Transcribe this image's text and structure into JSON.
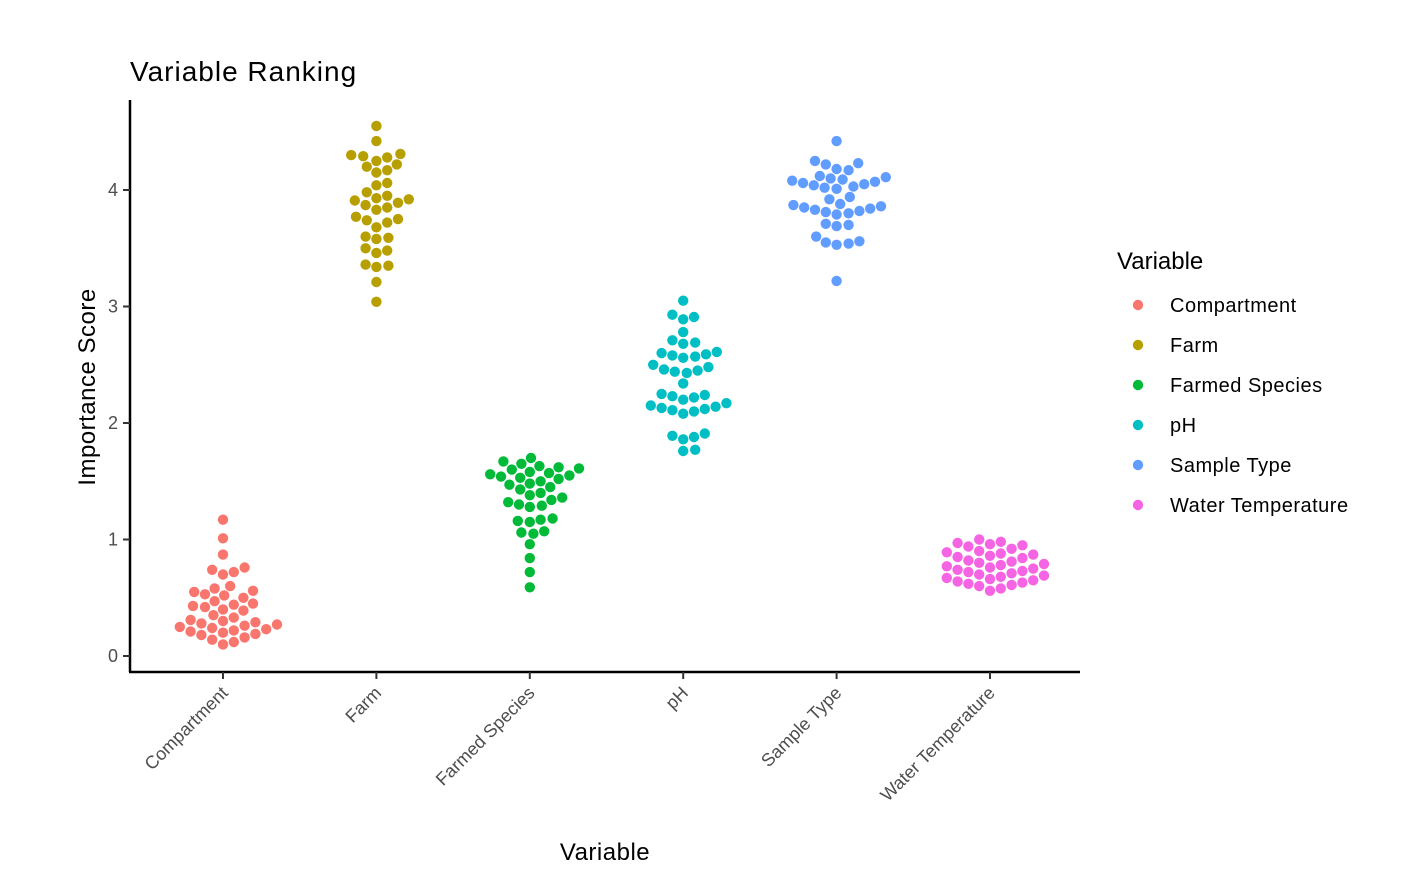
{
  "chart_data": {
    "type": "scatter",
    "subtype": "beeswarm",
    "title": "Variable Ranking",
    "xlabel": "Variable",
    "ylabel": "Importance Score",
    "ylim": [
      -0.13,
      4.77
    ],
    "yticks": [
      0,
      1,
      2,
      3,
      4
    ],
    "categories": [
      "Compartment",
      "Farm",
      "Farmed Species",
      "pH",
      "Sample Type",
      "Water Temperature"
    ],
    "legend": {
      "title": "Variable",
      "position": "right"
    },
    "series": [
      {
        "name": "Compartment",
        "color": "#F8766D",
        "values": [
          1.17,
          1.01,
          0.87,
          0.76,
          0.74,
          0.72,
          0.7,
          0.6,
          0.58,
          0.56,
          0.55,
          0.53,
          0.52,
          0.5,
          0.47,
          0.45,
          0.44,
          0.43,
          0.42,
          0.4,
          0.39,
          0.35,
          0.33,
          0.31,
          0.3,
          0.29,
          0.28,
          0.27,
          0.26,
          0.25,
          0.24,
          0.23,
          0.22,
          0.21,
          0.2,
          0.19,
          0.18,
          0.16,
          0.14,
          0.12,
          0.1
        ]
      },
      {
        "name": "Farm",
        "color": "#B79F00",
        "values": [
          4.55,
          4.42,
          4.31,
          4.3,
          4.29,
          4.28,
          4.25,
          4.22,
          4.2,
          4.17,
          4.15,
          4.06,
          4.04,
          3.98,
          3.95,
          3.93,
          3.92,
          3.91,
          3.89,
          3.87,
          3.85,
          3.83,
          3.77,
          3.75,
          3.74,
          3.72,
          3.68,
          3.6,
          3.59,
          3.58,
          3.5,
          3.48,
          3.46,
          3.36,
          3.35,
          3.34,
          3.21,
          3.04
        ]
      },
      {
        "name": "Farmed Species",
        "color": "#00BA38",
        "values": [
          1.7,
          1.67,
          1.65,
          1.63,
          1.62,
          1.61,
          1.6,
          1.58,
          1.57,
          1.56,
          1.55,
          1.54,
          1.53,
          1.52,
          1.5,
          1.48,
          1.47,
          1.45,
          1.43,
          1.4,
          1.38,
          1.36,
          1.34,
          1.32,
          1.3,
          1.29,
          1.28,
          1.18,
          1.17,
          1.16,
          1.15,
          1.07,
          1.06,
          1.05,
          0.96,
          0.84,
          0.72,
          0.59
        ]
      },
      {
        "name": "pH",
        "color": "#00BFC4",
        "values": [
          3.05,
          2.93,
          2.91,
          2.89,
          2.78,
          2.71,
          2.69,
          2.68,
          2.61,
          2.6,
          2.59,
          2.58,
          2.57,
          2.56,
          2.5,
          2.48,
          2.46,
          2.45,
          2.44,
          2.43,
          2.34,
          2.25,
          2.24,
          2.23,
          2.22,
          2.2,
          2.17,
          2.15,
          2.14,
          2.13,
          2.12,
          2.11,
          2.1,
          2.08,
          1.91,
          1.89,
          1.88,
          1.86,
          1.77,
          1.76
        ]
      },
      {
        "name": "Sample Type",
        "color": "#619CFF",
        "values": [
          4.42,
          4.25,
          4.23,
          4.22,
          4.18,
          4.17,
          4.12,
          4.11,
          4.1,
          4.09,
          4.08,
          4.07,
          4.06,
          4.05,
          4.04,
          4.03,
          4.02,
          4.01,
          3.94,
          3.92,
          3.88,
          3.87,
          3.86,
          3.85,
          3.84,
          3.83,
          3.82,
          3.81,
          3.8,
          3.79,
          3.71,
          3.7,
          3.69,
          3.6,
          3.56,
          3.55,
          3.54,
          3.53,
          3.22
        ]
      },
      {
        "name": "Water Temperature",
        "color": "#F564E3",
        "values": [
          1.0,
          0.98,
          0.97,
          0.96,
          0.95,
          0.94,
          0.92,
          0.9,
          0.89,
          0.88,
          0.87,
          0.86,
          0.85,
          0.84,
          0.82,
          0.81,
          0.8,
          0.79,
          0.78,
          0.77,
          0.76,
          0.75,
          0.74,
          0.73,
          0.72,
          0.71,
          0.7,
          0.69,
          0.68,
          0.67,
          0.66,
          0.65,
          0.64,
          0.63,
          0.62,
          0.61,
          0.6,
          0.58,
          0.56
        ]
      }
    ]
  }
}
